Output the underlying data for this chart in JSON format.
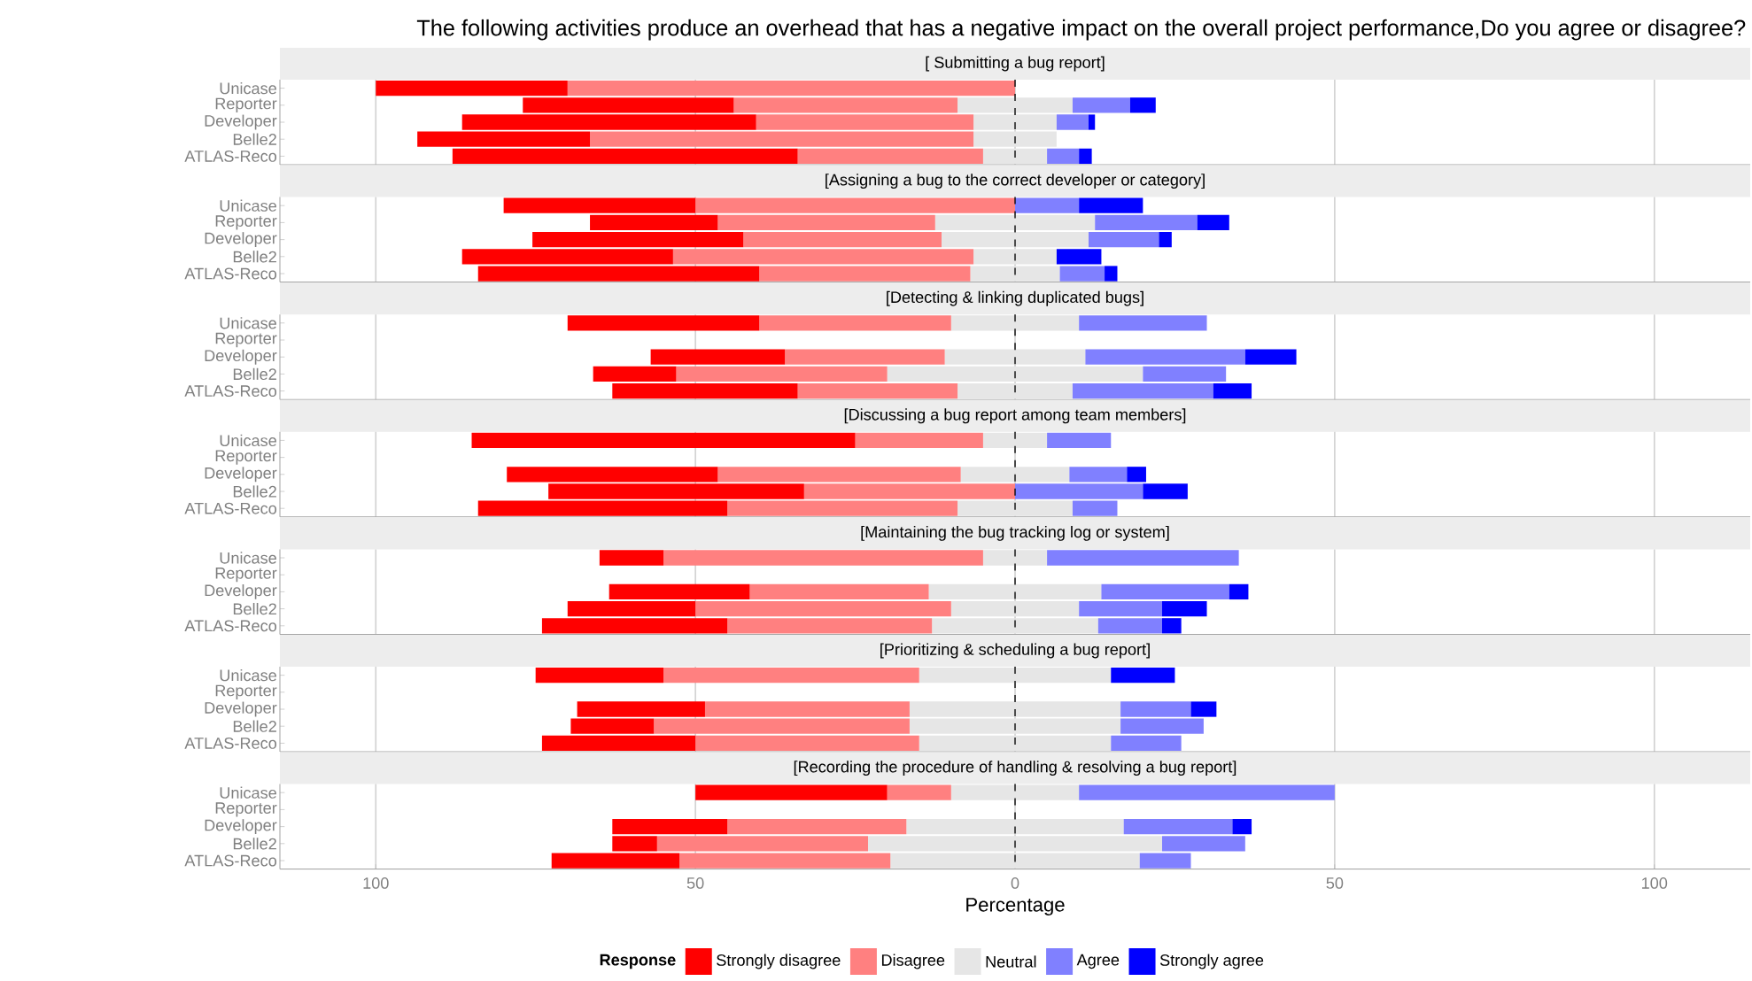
{
  "chart_data": [
    {
      "type": "bar",
      "orientation": "horizontal",
      "stacked": true,
      "title": "The following activities produce an overhead that has a negative impact on the overall project performance,Do you agree or disagree?",
      "subtitle": "[ Submitting a bug report]",
      "categories": [
        "Unicase",
        "Reporter",
        "Developer",
        "Belle2",
        "ATLAS-Reco"
      ],
      "series": [
        {
          "color": "#e6e6e6",
          "values": [
            0,
            -9,
            -6.5,
            -6.5,
            -5
          ]
        },
        {
          "color": "#ff8080",
          "values": [
            -70,
            -35,
            -34,
            -60,
            -29
          ]
        },
        {
          "color": "#ff0000",
          "values": [
            -30,
            -33,
            -46,
            -27,
            -54
          ]
        },
        {
          "color": "#e6e6e6",
          "values": [
            0,
            9,
            6.5,
            6.5,
            5
          ]
        },
        {
          "color": "#8080ff",
          "values": [
            0,
            9,
            5,
            0,
            5
          ]
        },
        {
          "color": "#0000ff",
          "values": [
            0,
            4,
            1,
            0,
            2
          ]
        }
      ],
      "xlim": [
        -115,
        115
      ],
      "xticks": [
        {
          "value": -100,
          "label": null
        },
        {
          "value": -50,
          "label": null
        },
        {
          "value": 0,
          "label": null
        },
        {
          "value": 50,
          "label": null
        },
        {
          "value": 100,
          "label": null
        }
      ],
      "grid": "x",
      "ref_lines": [
        {
          "axis": "x",
          "value": 0,
          "color": "#000000",
          "line_style": "dashed"
        }
      ],
      "tick_labels": "y"
    },
    {
      "type": "bar",
      "orientation": "horizontal",
      "stacked": true,
      "title": "[Assigning a bug to the correct developer or category]",
      "categories": [
        "Unicase",
        "Reporter",
        "Developer",
        "Belle2",
        "ATLAS-Reco"
      ],
      "series": [
        {
          "color": "#e6e6e6",
          "values": [
            0,
            -12.5,
            -11.5,
            -6.5,
            -7
          ]
        },
        {
          "color": "#ff8080",
          "values": [
            -50,
            -34,
            -31,
            -47,
            -33
          ]
        },
        {
          "color": "#ff0000",
          "values": [
            -30,
            -20,
            -33,
            -33,
            -44
          ]
        },
        {
          "color": "#e6e6e6",
          "values": [
            0,
            12.5,
            11.5,
            6.5,
            7
          ]
        },
        {
          "color": "#8080ff",
          "values": [
            10,
            16,
            11,
            0,
            7
          ]
        },
        {
          "color": "#0000ff",
          "values": [
            10,
            5,
            2,
            7,
            2
          ]
        }
      ],
      "xlim": [
        -115,
        115
      ],
      "xticks": [
        {
          "value": -100,
          "label": null
        },
        {
          "value": -50,
          "label": null
        },
        {
          "value": 0,
          "label": null
        },
        {
          "value": 50,
          "label": null
        },
        {
          "value": 100,
          "label": null
        }
      ],
      "grid": "x",
      "ref_lines": [
        {
          "axis": "x",
          "value": 0,
          "color": "#000000",
          "line_style": "dashed"
        }
      ],
      "tick_labels": "y"
    },
    {
      "type": "bar",
      "orientation": "horizontal",
      "stacked": true,
      "title": "[Detecting & linking duplicated bugs]",
      "categories": [
        "Unicase",
        "Reporter",
        "Developer",
        "Belle2",
        "ATLAS-Reco"
      ],
      "series": [
        {
          "color": "#e6e6e6",
          "values": [
            -10,
            null,
            -11,
            -20,
            -9
          ]
        },
        {
          "color": "#ff8080",
          "values": [
            -30,
            null,
            -25,
            -33,
            -25
          ]
        },
        {
          "color": "#ff0000",
          "values": [
            -30,
            null,
            -21,
            -13,
            -29
          ]
        },
        {
          "color": "#e6e6e6",
          "values": [
            10,
            null,
            11,
            20,
            9
          ]
        },
        {
          "color": "#8080ff",
          "values": [
            20,
            null,
            25,
            13,
            22
          ]
        },
        {
          "color": "#0000ff",
          "values": [
            0,
            null,
            8,
            0,
            6
          ]
        }
      ],
      "xlim": [
        -115,
        115
      ],
      "xticks": [
        {
          "value": -100,
          "label": null
        },
        {
          "value": -50,
          "label": null
        },
        {
          "value": 0,
          "label": null
        },
        {
          "value": 50,
          "label": null
        },
        {
          "value": 100,
          "label": null
        }
      ],
      "grid": "x",
      "ref_lines": [
        {
          "axis": "x",
          "value": 0,
          "color": "#000000",
          "line_style": "dashed"
        }
      ],
      "tick_labels": "y"
    },
    {
      "type": "bar",
      "orientation": "horizontal",
      "stacked": true,
      "title": "[Discussing a bug report among team members]",
      "categories": [
        "Unicase",
        "Reporter",
        "Developer",
        "Belle2",
        "ATLAS-Reco"
      ],
      "series": [
        {
          "color": "#e6e6e6",
          "values": [
            -5,
            null,
            -8.5,
            0,
            -9
          ]
        },
        {
          "color": "#ff8080",
          "values": [
            -20,
            null,
            -38,
            -33,
            -36
          ]
        },
        {
          "color": "#ff0000",
          "values": [
            -60,
            null,
            -33,
            -40,
            -39
          ]
        },
        {
          "color": "#e6e6e6",
          "values": [
            5,
            null,
            8.5,
            0,
            9
          ]
        },
        {
          "color": "#8080ff",
          "values": [
            10,
            null,
            9,
            20,
            7
          ]
        },
        {
          "color": "#0000ff",
          "values": [
            0,
            null,
            3,
            7,
            0
          ]
        }
      ],
      "xlim": [
        -115,
        115
      ],
      "xticks": [
        {
          "value": -100,
          "label": null
        },
        {
          "value": -50,
          "label": null
        },
        {
          "value": 0,
          "label": null
        },
        {
          "value": 50,
          "label": null
        },
        {
          "value": 100,
          "label": null
        }
      ],
      "grid": "x",
      "ref_lines": [
        {
          "axis": "x",
          "value": 0,
          "color": "#000000",
          "line_style": "dashed"
        }
      ],
      "tick_labels": "y"
    },
    {
      "type": "bar",
      "orientation": "horizontal",
      "stacked": true,
      "title": "[Maintaining the bug tracking log or system]",
      "categories": [
        "Unicase",
        "Reporter",
        "Developer",
        "Belle2",
        "ATLAS-Reco"
      ],
      "series": [
        {
          "color": "#e6e6e6",
          "values": [
            -5,
            null,
            -13.5,
            -10,
            -13
          ]
        },
        {
          "color": "#ff8080",
          "values": [
            -50,
            null,
            -28,
            -40,
            -32
          ]
        },
        {
          "color": "#ff0000",
          "values": [
            -10,
            null,
            -22,
            -20,
            -29
          ]
        },
        {
          "color": "#e6e6e6",
          "values": [
            5,
            null,
            13.5,
            10,
            13
          ]
        },
        {
          "color": "#8080ff",
          "values": [
            30,
            null,
            20,
            13,
            10
          ]
        },
        {
          "color": "#0000ff",
          "values": [
            0,
            null,
            3,
            7,
            3
          ]
        }
      ],
      "xlim": [
        -115,
        115
      ],
      "xticks": [
        {
          "value": -100,
          "label": null
        },
        {
          "value": -50,
          "label": null
        },
        {
          "value": 0,
          "label": null
        },
        {
          "value": 50,
          "label": null
        },
        {
          "value": 100,
          "label": null
        }
      ],
      "grid": "x",
      "ref_lines": [
        {
          "axis": "x",
          "value": 0,
          "color": "#000000",
          "line_style": "dashed"
        }
      ],
      "tick_labels": "y"
    },
    {
      "type": "bar",
      "orientation": "horizontal",
      "stacked": true,
      "title": "[Prioritizing & scheduling a bug report]",
      "categories": [
        "Unicase",
        "Reporter",
        "Developer",
        "Belle2",
        "ATLAS-Reco"
      ],
      "series": [
        {
          "color": "#e6e6e6",
          "values": [
            -15,
            null,
            -16.5,
            -16.5,
            -15
          ]
        },
        {
          "color": "#ff8080",
          "values": [
            -40,
            null,
            -32,
            -40,
            -35
          ]
        },
        {
          "color": "#ff0000",
          "values": [
            -20,
            null,
            -20,
            -13,
            -24
          ]
        },
        {
          "color": "#e6e6e6",
          "values": [
            15,
            null,
            16.5,
            16.5,
            15
          ]
        },
        {
          "color": "#8080ff",
          "values": [
            0,
            null,
            11,
            13,
            11
          ]
        },
        {
          "color": "#0000ff",
          "values": [
            10,
            null,
            4,
            0,
            0
          ]
        }
      ],
      "xlim": [
        -115,
        115
      ],
      "xticks": [
        {
          "value": -100,
          "label": null
        },
        {
          "value": -50,
          "label": null
        },
        {
          "value": 0,
          "label": null
        },
        {
          "value": 50,
          "label": null
        },
        {
          "value": 100,
          "label": null
        }
      ],
      "grid": "x",
      "ref_lines": [
        {
          "axis": "x",
          "value": 0,
          "color": "#000000",
          "line_style": "dashed"
        }
      ],
      "tick_labels": "y"
    },
    {
      "type": "bar",
      "orientation": "horizontal",
      "stacked": true,
      "title": "[Recording the procedure of handling & resolving a bug report]",
      "categories": [
        "Unicase",
        "Reporter",
        "Developer",
        "Belle2",
        "ATLAS-Reco"
      ],
      "series": [
        {
          "color": "#e6e6e6",
          "values": [
            -10,
            null,
            -17,
            -23,
            -19.5
          ]
        },
        {
          "name": "Disagree",
          "color": "#ff8080",
          "values": [
            -10,
            null,
            -28,
            -33,
            -33
          ]
        },
        {
          "name": "Strongly disagree",
          "color": "#ff0000",
          "values": [
            -30,
            null,
            -18,
            -7,
            -20
          ]
        },
        {
          "name": "Neutral",
          "color": "#e6e6e6",
          "values": [
            10,
            null,
            17,
            23,
            19.5
          ]
        },
        {
          "name": "Agree",
          "color": "#8080ff",
          "values": [
            40,
            null,
            17,
            13,
            8
          ]
        },
        {
          "name": "Strongly agree",
          "color": "#0000ff",
          "values": [
            0,
            null,
            3,
            0,
            0
          ]
        }
      ],
      "xlim": [
        -115,
        115
      ],
      "xticks": [
        {
          "value": -100,
          "label": "100"
        },
        {
          "value": -50,
          "label": "50"
        },
        0,
        50,
        100
      ],
      "grid": "x",
      "ref_lines": [
        {
          "axis": "x",
          "value": 0,
          "color": "#000000",
          "line_style": "dashed"
        }
      ],
      "xlabel": "Percentage",
      "legend": "bottom",
      "legend_title": "Response"
    }
  ]
}
